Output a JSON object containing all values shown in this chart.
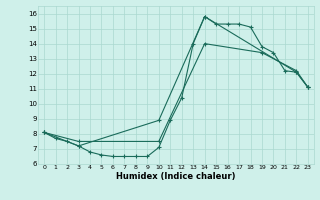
{
  "xlabel": "Humidex (Indice chaleur)",
  "xlim": [
    -0.5,
    23.5
  ],
  "ylim": [
    6,
    16.5
  ],
  "yticks": [
    6,
    7,
    8,
    9,
    10,
    11,
    12,
    13,
    14,
    15,
    16
  ],
  "xticks": [
    0,
    1,
    2,
    3,
    4,
    5,
    6,
    7,
    8,
    9,
    10,
    11,
    12,
    13,
    14,
    15,
    16,
    17,
    18,
    19,
    20,
    21,
    22,
    23
  ],
  "bg_color": "#cff0ea",
  "line_color": "#1a6b5a",
  "grid_color": "#aad8d0",
  "line1_x": [
    0,
    1,
    2,
    3,
    4,
    5,
    6,
    7,
    8,
    9,
    10,
    11,
    12,
    13,
    14,
    15,
    16,
    17,
    18,
    19,
    20,
    21,
    22,
    23
  ],
  "line1_y": [
    8.1,
    7.7,
    7.5,
    7.2,
    6.8,
    6.6,
    6.5,
    6.5,
    6.5,
    6.5,
    7.1,
    8.9,
    10.4,
    14.0,
    15.8,
    15.3,
    15.3,
    15.3,
    15.1,
    13.8,
    13.4,
    12.2,
    12.1,
    11.1
  ],
  "line2_x": [
    0,
    3,
    10,
    14,
    19,
    22,
    23
  ],
  "line2_y": [
    8.1,
    7.5,
    7.5,
    14.0,
    13.4,
    12.2,
    11.1
  ],
  "line3_x": [
    0,
    3,
    10,
    14,
    22,
    23
  ],
  "line3_y": [
    8.1,
    7.2,
    8.9,
    15.8,
    12.1,
    11.1
  ]
}
